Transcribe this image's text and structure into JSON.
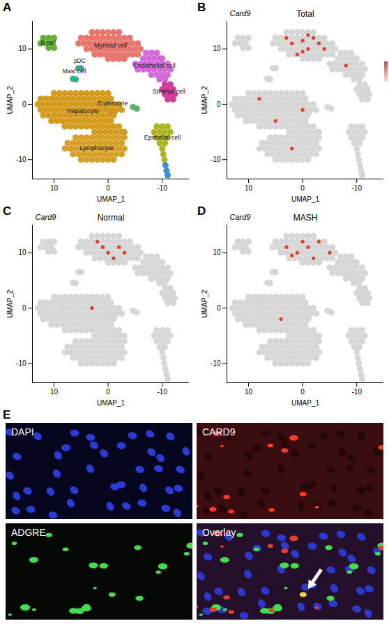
{
  "chart_data": [
    {
      "type": "scatter",
      "panel_label": "A",
      "xlabel": "UMAP_1",
      "ylabel": "UMAP_2",
      "xlim": [
        14,
        -15
      ],
      "ylim": [
        -13.5,
        15
      ],
      "xticks": [
        10,
        0,
        -10
      ],
      "yticks": [
        10,
        0,
        -10
      ],
      "series": [
        {
          "name": "Myeloid cell",
          "color": "#e9756d",
          "x": [
            3,
            2,
            1,
            0,
            -1,
            -2,
            5,
            4,
            3,
            2,
            1,
            0,
            -1,
            -2,
            -3,
            -4,
            5.5,
            4.5,
            3.5,
            2.5,
            1.5,
            0.5,
            -0.5,
            -1.5,
            -2.5,
            -3.5,
            -4.5,
            -5.5,
            4,
            3,
            2,
            1,
            0,
            -1,
            -2,
            -3,
            -4,
            -5,
            -6,
            2.5,
            1.5,
            0.5,
            -0.5,
            -1.5,
            -2.5,
            -3.5,
            -4.5,
            -5.5,
            0,
            -1,
            -2,
            -3
          ],
          "y": [
            13,
            13,
            13,
            13,
            13,
            13,
            12,
            12,
            12,
            12,
            12,
            12,
            12,
            12,
            12,
            12,
            11,
            11,
            11,
            11,
            11,
            11,
            11,
            11,
            11,
            11,
            11,
            11,
            10,
            10,
            10,
            10,
            10,
            10,
            10,
            10,
            10,
            10,
            10,
            9,
            9,
            9,
            9,
            9,
            9,
            9,
            9,
            9,
            8.2,
            8.2,
            8.2,
            8.2
          ]
        },
        {
          "name": "B cell",
          "color": "#5fb233",
          "x": [
            12,
            11,
            10,
            12.5,
            11.5,
            10.5,
            11,
            10
          ],
          "y": [
            12,
            12,
            12,
            11,
            11,
            11,
            10.2,
            10.2
          ]
        },
        {
          "name": "pDC",
          "color": "#3d9e9a",
          "x": [
            5.5,
            5
          ],
          "y": [
            6.5,
            6.5
          ]
        },
        {
          "name": "Mast cell",
          "color": "#2fb08f",
          "x": [
            6.5,
            6
          ],
          "y": [
            4.6,
            4.5
          ]
        },
        {
          "name": "Endothelial cell",
          "color": "#d36ad8",
          "x": [
            -7,
            -8,
            -9,
            -6.5,
            -7.5,
            -8.5,
            -9.5,
            -10,
            -5,
            -6,
            -7,
            -8,
            -9,
            -10,
            -11,
            -5.5,
            -6.5,
            -7.5,
            -8.5,
            -9.5,
            -10.5,
            -11.5,
            -8,
            -9,
            -10,
            -11,
            -9.5,
            -10.5
          ],
          "y": [
            9.3,
            9.3,
            9.3,
            8.3,
            8.3,
            8.3,
            8.3,
            8.3,
            7.3,
            7.3,
            7.3,
            7.3,
            7.3,
            7.3,
            7.3,
            6.3,
            6.3,
            6.3,
            6.3,
            6.3,
            6.3,
            6.3,
            5.3,
            5.3,
            5.3,
            5.3,
            4.5,
            4.5
          ]
        },
        {
          "name": "Stromal cell",
          "color": "#d13c98",
          "x": [
            -10.5,
            -11.5,
            -10,
            -11,
            -12,
            -10.5,
            -11.5,
            -12.3,
            -11,
            -12
          ],
          "y": [
            3.6,
            3.6,
            2.7,
            2.7,
            2.7,
            1.8,
            1.8,
            1.8,
            0.9,
            0.9
          ]
        },
        {
          "name": "Erythrocyte",
          "color": "#8b6fc9",
          "x": [
            -0.5,
            -1.2
          ],
          "y": [
            -1.2,
            -1.3
          ]
        },
        {
          "name": null,
          "color": "#58b56a",
          "x": [
            -4.6,
            -5.3
          ],
          "y": [
            -0.5,
            -0.8
          ]
        },
        {
          "name": "Hepatocyte",
          "color": "#d59a1c",
          "x": [
            10,
            9,
            8,
            7,
            6,
            5,
            4,
            3,
            2,
            1,
            0,
            12.5,
            11.5,
            10.5,
            9.5,
            8.5,
            7.5,
            6.5,
            5.5,
            4.5,
            3.5,
            2.5,
            1.5,
            0.5,
            -0.5,
            13,
            12,
            11,
            10,
            9,
            8,
            7,
            6,
            5,
            4,
            3,
            2,
            1,
            0,
            -1,
            -2,
            12.5,
            11.5,
            10.5,
            9.5,
            8.5,
            7.5,
            6.5,
            5.5,
            4.5,
            3.5,
            2.5,
            1.5,
            0.5,
            -0.5,
            -1.5,
            -2.5,
            12,
            11,
            10,
            9,
            8,
            7,
            6,
            5,
            4,
            3,
            2,
            1,
            0,
            -1,
            10.5,
            9.5,
            8.5,
            7.5,
            6.5,
            5.5,
            4.5,
            3.5,
            2.5,
            1.5,
            0.5,
            -0.5,
            8,
            7,
            6,
            5,
            4,
            3,
            2,
            1,
            0,
            -1,
            -2,
            2.5,
            1.5,
            0.5,
            -0.5,
            -1.5,
            -2.5,
            -3
          ],
          "y": [
            2,
            2,
            2,
            2,
            2,
            2,
            2,
            2,
            2,
            2,
            2,
            1,
            1,
            1,
            1,
            1,
            1,
            1,
            1,
            1,
            1,
            1,
            1,
            1,
            1,
            0,
            0,
            0,
            0,
            0,
            0,
            0,
            0,
            0,
            0,
            0,
            0,
            0,
            0,
            0,
            0,
            -1,
            -1,
            -1,
            -1,
            -1,
            -1,
            -1,
            -1,
            -1,
            -1,
            -1,
            -1,
            -1,
            -1,
            -1,
            -1,
            -2,
            -2,
            -2,
            -2,
            -2,
            -2,
            -2,
            -2,
            -2,
            -2,
            -2,
            -2,
            -2,
            -2,
            -3,
            -3,
            -3,
            -3,
            -3,
            -3,
            -3,
            -3,
            -3,
            -3,
            -3,
            -3,
            -4,
            -4,
            -4,
            -4,
            -4,
            -4,
            -4,
            -4,
            -4,
            -4,
            -4,
            -5,
            -5,
            -5,
            -5,
            -5,
            -5,
            -5
          ]
        },
        {
          "name": "Lymphocyte",
          "color": "#d6a026",
          "x": [
            6,
            5,
            4,
            3,
            2,
            1,
            0,
            -1,
            -2,
            -3,
            7.5,
            6.5,
            5.5,
            4.5,
            3.5,
            2.5,
            1.5,
            0.5,
            -0.5,
            -1.5,
            -2.5,
            8,
            7,
            6,
            5,
            4,
            3,
            2,
            1,
            0,
            -1,
            -2,
            -3,
            6.5,
            5.5,
            4.5,
            3.5,
            2.5,
            1.5,
            0.5,
            -0.5,
            -1.5,
            -2.5,
            5,
            4,
            3,
            2,
            1,
            0,
            -1
          ],
          "y": [
            -6,
            -6,
            -6,
            -6,
            -6,
            -6,
            -6,
            -6,
            -6,
            -6,
            -7,
            -7,
            -7,
            -7,
            -7,
            -7,
            -7,
            -7,
            -7,
            -7,
            -7,
            -8,
            -8,
            -8,
            -8,
            -8,
            -8,
            -8,
            -8,
            -8,
            -8,
            -8,
            -8,
            -9,
            -9,
            -9,
            -9,
            -9,
            -9,
            -9,
            -9,
            -9,
            -9,
            -10,
            -10,
            -10,
            -10,
            -10,
            -10,
            -10
          ]
        },
        {
          "name": "Epithelial cell",
          "color": "#adb61f",
          "x": [
            -9,
            -10,
            -11,
            -8.5,
            -9.5,
            -10.5,
            -11.5,
            -9,
            -10,
            -11,
            -9.5,
            -10.5,
            -10,
            -10.2,
            -10.4
          ],
          "y": [
            -4,
            -4,
            -4,
            -5,
            -5,
            -5,
            -5,
            -6,
            -6,
            -6,
            -7,
            -7,
            -8,
            -9,
            -10
          ]
        },
        {
          "name": null,
          "color": "#3d8fd8",
          "x": [
            -10.6,
            -10.8,
            -11
          ],
          "y": [
            -11,
            -12,
            -12.8
          ]
        }
      ]
    },
    {
      "type": "scatter",
      "panel_label": "B",
      "title": "Total",
      "xlabel": "UMAP_1",
      "ylabel": "UMAP_2",
      "xlim": [
        14,
        -15
      ],
      "ylim": [
        -13.5,
        15
      ],
      "xticks": [
        10,
        0,
        -10
      ],
      "yticks": [
        10,
        0,
        -10
      ],
      "legend": "right",
      "series": [
        {
          "name": "Card9",
          "color": "#e0412b",
          "x": [
            2,
            0,
            -1,
            -2,
            1,
            -3,
            3,
            -1,
            -4,
            0,
            0,
            5,
            2,
            -8,
            8
          ],
          "y": [
            11,
            11.5,
            10,
            12,
            9,
            11,
            12,
            12.5,
            10,
            9.5,
            -1,
            -3,
            -8,
            7,
            1
          ]
        }
      ]
    },
    {
      "type": "scatter",
      "panel_label": "C",
      "title": "Normal",
      "xlabel": "UMAP_1",
      "ylabel": "UMAP_2",
      "xlim": [
        14,
        -15
      ],
      "ylim": [
        -13.5,
        15
      ],
      "xticks": [
        10,
        0,
        -10
      ],
      "yticks": [
        10,
        0,
        -10
      ],
      "series": [
        {
          "name": "Card9",
          "color": "#e0412b",
          "x": [
            1,
            0,
            -2,
            2,
            -1,
            -3,
            3
          ],
          "y": [
            11,
            10,
            11,
            12,
            9,
            10,
            0
          ]
        }
      ]
    },
    {
      "type": "scatter",
      "panel_label": "D",
      "title": "MASH",
      "xlabel": "UMAP_1",
      "ylabel": "UMAP_2",
      "xlim": [
        14,
        -15
      ],
      "ylim": [
        -13.5,
        15
      ],
      "xticks": [
        10,
        0,
        -10
      ],
      "yticks": [
        10,
        0,
        -10
      ],
      "series": [
        {
          "name": "Card9",
          "color": "#e0412b",
          "x": [
            1,
            -1,
            0,
            2,
            -2,
            -3,
            3,
            -5,
            4
          ],
          "y": [
            10,
            11,
            12,
            9.5,
            9,
            12,
            11,
            10,
            -2
          ]
        }
      ]
    }
  ],
  "image_panel": {
    "panel_label": "E",
    "images": [
      {
        "label": "DAPI"
      },
      {
        "label": "CARD9"
      },
      {
        "label": "ADGRE"
      },
      {
        "label": "Overlay"
      }
    ]
  }
}
